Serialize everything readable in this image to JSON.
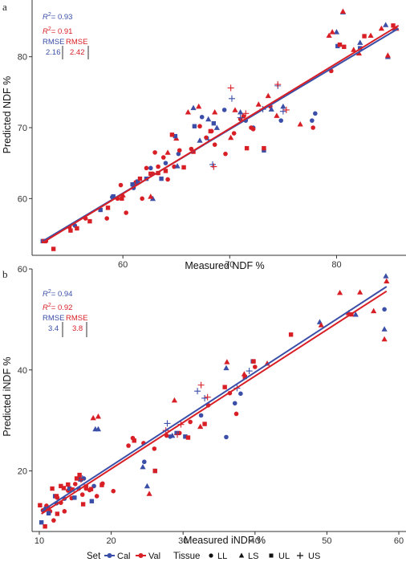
{
  "colors": {
    "cal": "#3b4fa8",
    "val": "#d81f26",
    "axis": "#333333",
    "legend_tissue": "#111111"
  },
  "legend": {
    "set_title": "Set",
    "set_items": [
      {
        "key": "Cal",
        "label": "Cal"
      },
      {
        "key": "Val",
        "label": "Val"
      }
    ],
    "tissue_title": "Tissue",
    "tissue_items": [
      {
        "key": "LL",
        "label": "LL",
        "shape": "circle"
      },
      {
        "key": "LS",
        "label": "LS",
        "shape": "triangle"
      },
      {
        "key": "UL",
        "label": "UL",
        "shape": "square"
      },
      {
        "key": "US",
        "label": "US",
        "shape": "plus"
      }
    ]
  },
  "chart_data": [
    {
      "type": "scatter",
      "panel": "a",
      "xlabel": "Measured NDF %",
      "ylabel": "Predicted NDF %",
      "xlim": [
        51.5,
        86.5
      ],
      "ylim": [
        52.0,
        88.0
      ],
      "xticks": [
        60,
        70,
        80
      ],
      "yticks": [
        60,
        70,
        80
      ],
      "stats": {
        "r2_cal": "= 0.93",
        "r2_val": "= 0.91",
        "rmse_label_cal": "RMSE",
        "rmse_label_val": "RMSE",
        "rmse_cal": "2.16",
        "rmse_val": "2.42"
      },
      "fit_lines": [
        {
          "set": "Cal",
          "x": [
            52.5,
            85.8
          ],
          "y": [
            54.0,
            84.0
          ]
        },
        {
          "set": "Val",
          "x": [
            52.5,
            85.8
          ],
          "y": [
            53.8,
            84.4
          ]
        }
      ],
      "series": [
        {
          "set": "Cal",
          "tissue": "LL",
          "x": [
            52.7,
            55.5,
            59.0,
            61.0,
            62.6,
            64.0,
            65.2,
            67.4,
            69.5,
            71.5,
            72.2,
            74.8,
            77.7,
            78.0
          ],
          "y": [
            54.0,
            56.2,
            60.2,
            61.5,
            64.3,
            65.0,
            66.3,
            71.5,
            72.5,
            71.0,
            70.0,
            71.0,
            71.0,
            72.0
          ]
        },
        {
          "set": "Val",
          "tissue": "LL",
          "x": [
            52.8,
            55.0,
            56.5,
            58.5,
            59.5,
            59.8,
            60.3,
            61.0,
            61.2,
            61.8,
            62.2,
            62.8,
            63.0,
            63.3,
            63.8,
            64.2,
            64.8,
            65.3,
            66.4,
            67.2,
            67.8,
            68.3,
            68.6,
            69.6,
            70.4,
            71.0,
            71.3,
            72.0,
            72.2,
            73.8,
            77.8,
            79.5
          ],
          "y": [
            54.0,
            56.0,
            57.2,
            57.2,
            60.0,
            61.9,
            58.0,
            61.9,
            62.3,
            60.0,
            64.3,
            63.5,
            66.5,
            64.5,
            65.8,
            62.7,
            64.5,
            66.8,
            67.0,
            70.2,
            68.6,
            69.5,
            67.6,
            66.3,
            69.2,
            71.2,
            71.6,
            70.0,
            69.8,
            73.0,
            70.0,
            78.0
          ]
        },
        {
          "set": "Cal",
          "tissue": "LS",
          "x": [
            62.8,
            65.1,
            66.6,
            67.2,
            68.0,
            68.8,
            71.0,
            73.9,
            75.0,
            80.0,
            80.6,
            82.2,
            84.6,
            84.8,
            85.4
          ],
          "y": [
            60.0,
            64.6,
            72.8,
            68.2,
            71.2,
            70.0,
            72.2,
            72.6,
            73.0,
            83.5,
            86.3,
            82.0,
            84.5,
            80.0,
            84.0
          ]
        },
        {
          "set": "Val",
          "tissue": "LS",
          "x": [
            60.0,
            62.6,
            64.2,
            65.0,
            66.1,
            67.1,
            68.6,
            70.1,
            70.5,
            72.7,
            73.6,
            74.4,
            76.6,
            79.3,
            79.6,
            80.6,
            81.6,
            82.1,
            83.2,
            84.2,
            84.8,
            85.6
          ],
          "y": [
            60.5,
            60.3,
            66.5,
            68.5,
            72.2,
            73.0,
            72.2,
            68.6,
            72.5,
            73.3,
            74.5,
            71.7,
            70.5,
            83.0,
            83.5,
            86.4,
            81.0,
            80.5,
            83.0,
            84.0,
            80.2,
            84.0
          ]
        },
        {
          "set": "Cal",
          "tissue": "UL",
          "x": [
            52.5,
            57.9,
            59.1,
            60.9,
            61.4,
            62.2,
            63.6,
            64.9,
            66.7,
            68.5,
            73.2,
            80.1,
            82.2
          ],
          "y": [
            54.0,
            58.4,
            60.3,
            62.0,
            62.4,
            62.8,
            62.8,
            68.8,
            70.2,
            70.6,
            66.8,
            81.5,
            81.2
          ]
        },
        {
          "set": "Val",
          "tissue": "UL",
          "x": [
            52.6,
            53.5,
            55.1,
            55.7,
            56.9,
            58.6,
            59.9,
            61.6,
            62.6,
            63.3,
            64.0,
            64.6,
            65.7,
            66.6,
            68.2,
            71.6,
            73.2,
            80.3,
            80.7,
            82.6,
            85.3
          ],
          "y": [
            54.0,
            52.9,
            55.5,
            55.8,
            56.8,
            58.7,
            60.0,
            62.8,
            63.5,
            63.6,
            63.9,
            69.0,
            64.4,
            66.6,
            69.5,
            67.1,
            67.1,
            81.7,
            81.4,
            82.9,
            84.4
          ]
        },
        {
          "set": "Cal",
          "tissue": "US",
          "x": [
            68.0,
            68.4,
            70.2,
            71.0,
            73.1,
            74.5,
            75.0
          ],
          "y": [
            68.3,
            64.8,
            74.1,
            71.4,
            72.6,
            75.9,
            72.3
          ]
        },
        {
          "set": "Val",
          "tissue": "US",
          "x": [
            68.5,
            70.1,
            71.5,
            74.5,
            75.3
          ],
          "y": [
            64.5,
            75.6,
            72.0,
            76.1,
            72.5
          ]
        }
      ]
    },
    {
      "type": "scatter",
      "panel": "b",
      "xlabel": "Measured iNDF %",
      "ylabel": "Predicted iNDF %",
      "xlim": [
        9.0,
        61.0
      ],
      "ylim": [
        8.0,
        60.0
      ],
      "xticks": [
        10,
        20,
        30,
        40,
        50,
        60
      ],
      "yticks": [
        20,
        40,
        60
      ],
      "stats": {
        "r2_cal": "= 0.94",
        "r2_val": "= 0.92",
        "rmse_label_cal": "RMSE",
        "rmse_label_val": "RMSE",
        "rmse_cal": "3.4",
        "rmse_val": "3.8"
      },
      "fit_lines": [
        {
          "set": "Cal",
          "x": [
            10.3,
            58.3
          ],
          "y": [
            12.0,
            56.5
          ]
        },
        {
          "set": "Val",
          "x": [
            10.3,
            58.3
          ],
          "y": [
            11.5,
            55.6
          ]
        }
      ],
      "series": [
        {
          "set": "Cal",
          "tissue": "LL",
          "x": [
            11.0,
            12.4,
            13.5,
            14.3,
            15.5,
            16.2,
            17.6,
            24.6,
            28.2,
            32.5,
            36.0,
            37.2,
            38.0,
            58.0
          ],
          "y": [
            12.5,
            13.6,
            14.5,
            16.3,
            16.5,
            18.5,
            17.0,
            21.8,
            26.8,
            31.0,
            26.7,
            33.4,
            35.3,
            52.0
          ]
        },
        {
          "set": "Val",
          "tissue": "LL",
          "x": [
            10.5,
            11.0,
            11.5,
            12.0,
            12.5,
            13.0,
            13.5,
            14.0,
            14.5,
            15.0,
            15.5,
            16.0,
            16.5,
            17.0,
            18.0,
            18.8,
            20.3,
            22.4,
            23.0,
            24.5,
            26.0,
            27.7,
            29.5,
            31.0,
            33.5,
            36.5,
            37.4,
            40.0
          ],
          "y": [
            12.2,
            13.1,
            12.0,
            10.2,
            14.7,
            13.7,
            12.0,
            16.1,
            14.6,
            17.4,
            18.6,
            15.3,
            16.5,
            16.2,
            15.0,
            17.5,
            16.0,
            25.0,
            26.5,
            25.5,
            24.4,
            27.0,
            27.5,
            29.7,
            33.0,
            35.4,
            31.3,
            40.6
          ]
        },
        {
          "set": "Cal",
          "tissue": "LS",
          "x": [
            17.8,
            18.2,
            24.4,
            25.0,
            28.5,
            36.0,
            49.0,
            54.0,
            58.0,
            58.2
          ],
          "y": [
            28.3,
            28.3,
            20.8,
            17.0,
            27.0,
            40.4,
            49.5,
            51.0,
            48.1,
            58.6
          ]
        },
        {
          "set": "Val",
          "tissue": "LS",
          "x": [
            17.5,
            18.2,
            25.3,
            28.8,
            32.4,
            36.1,
            38.5,
            41.7,
            49.2,
            51.8,
            53.0,
            54.6,
            56.5,
            58.0,
            58.3
          ],
          "y": [
            30.5,
            30.8,
            15.5,
            34.0,
            28.8,
            41.6,
            39.2,
            41.3,
            48.9,
            55.3,
            51.3,
            55.4,
            51.7,
            46.1,
            57.6
          ]
        },
        {
          "set": "Cal",
          "tissue": "UL",
          "x": [
            10.3,
            10.9,
            11.3,
            12.2,
            14.2,
            14.9,
            15.7,
            17.3,
            26.1,
            29.1,
            30.3,
            39.7
          ],
          "y": [
            9.8,
            12.5,
            11.6,
            15.0,
            16.5,
            14.7,
            18.3,
            14.0,
            20.0,
            27.5,
            26.8,
            41.7
          ]
        },
        {
          "set": "Val",
          "tissue": "UL",
          "x": [
            10.1,
            10.8,
            11.2,
            11.8,
            12.4,
            12.5,
            13.0,
            13.4,
            14.0,
            14.6,
            15.2,
            15.6,
            16.1,
            16.5,
            17.2,
            18.7,
            23.2,
            26.1,
            30.7,
            33.0,
            35.8,
            38.6,
            39.8,
            45.0,
            53.4
          ],
          "y": [
            13.2,
            9.0,
            12.5,
            16.5,
            15.0,
            11.5,
            17.0,
            16.6,
            17.3,
            16.3,
            18.5,
            19.2,
            13.4,
            16.9,
            16.4,
            17.2,
            26.0,
            20.0,
            26.6,
            29.3,
            36.6,
            38.6,
            41.7,
            47.0,
            51.0
          ]
        },
        {
          "set": "Cal",
          "tissue": "US",
          "x": [
            16.0,
            27.8,
            32.0,
            33.0,
            37.5,
            39.2
          ],
          "y": [
            18.5,
            29.4,
            35.8,
            34.4,
            36.4,
            39.8
          ]
        },
        {
          "set": "Val",
          "tissue": "US",
          "x": [
            15.8,
            27.6,
            29.2,
            29.7,
            32.5,
            33.4
          ],
          "y": [
            18.3,
            28.0,
            27.2,
            29.2,
            37.0,
            34.6
          ]
        }
      ]
    }
  ]
}
